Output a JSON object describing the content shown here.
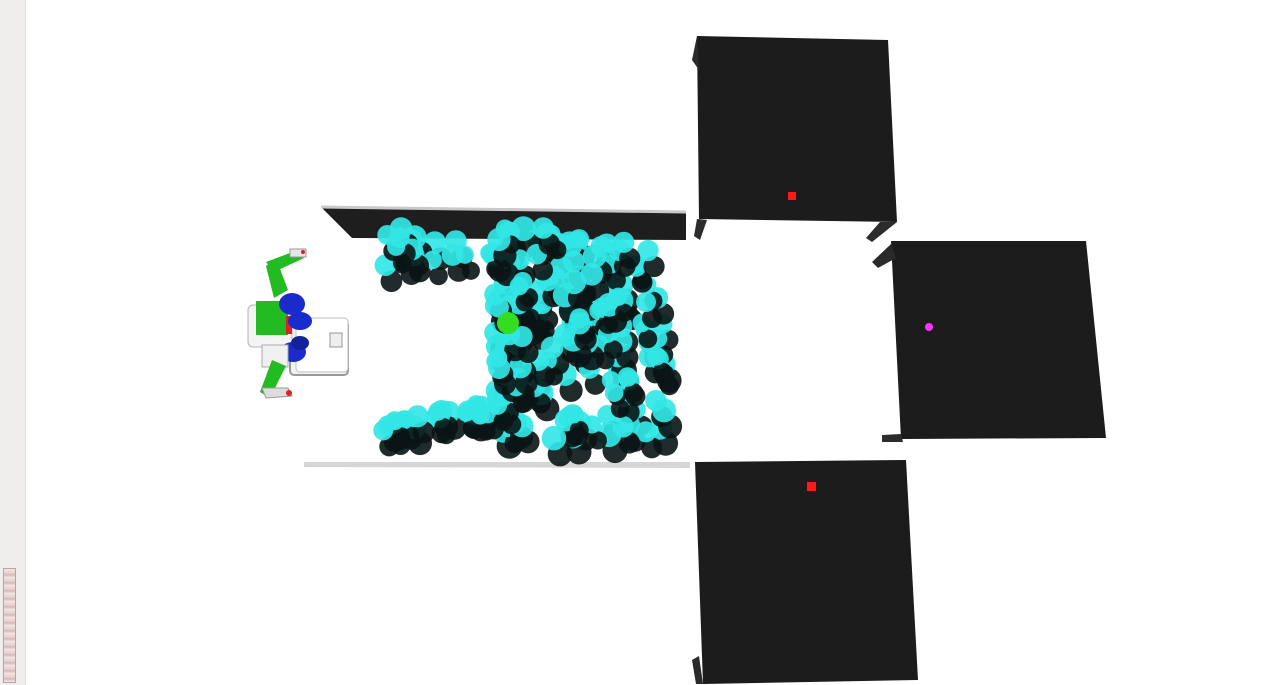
{
  "viewer": {
    "title": "",
    "background": "#ffffff"
  },
  "scene": {
    "objects": [
      {
        "name": "robot",
        "type": "dual-arm-robot"
      },
      {
        "name": "bin",
        "type": "open-tray"
      },
      {
        "name": "table-north",
        "type": "table",
        "marker_color": "#ff1a1a"
      },
      {
        "name": "table-east",
        "type": "table",
        "marker_color": "#ff33ff"
      },
      {
        "name": "table-south",
        "type": "table",
        "marker_color": "#ff1a1a"
      }
    ],
    "colors": {
      "cylinder": "#33e6e6",
      "cylinder_shadow": "#0a1414",
      "target_object": "#33dd22",
      "table_top": "#1c1c1c",
      "robot_green": "#22bb22",
      "robot_blue": "#1a2bcc",
      "robot_red": "#dd2222"
    },
    "icons": {
      "scale-bar": "vertical-gradient-bar"
    }
  }
}
